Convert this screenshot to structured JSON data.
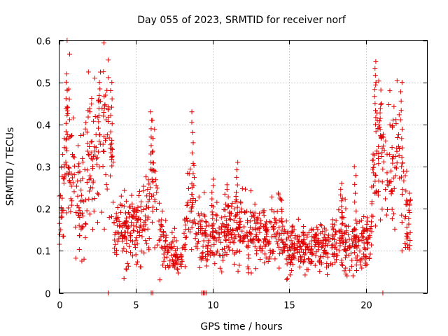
{
  "chart_data": {
    "type": "scatter",
    "title": "Day 055 of 2023, SRMTID for receiver norf",
    "xlabel": "GPS time / hours",
    "ylabel": "SRMTID / TECUs",
    "xlim": [
      0,
      24
    ],
    "ylim": [
      0,
      0.6
    ],
    "x_ticks": [
      0,
      5,
      10,
      15,
      20
    ],
    "x_tick_labels": [
      "0",
      "5",
      "10",
      "15",
      "20"
    ],
    "y_ticks": [
      0,
      0.1,
      0.2,
      0.3,
      0.4,
      0.5,
      0.6
    ],
    "y_tick_labels": [
      "0",
      "0.1",
      "0.2",
      "0.3",
      "0.4",
      "0.5",
      "0.6"
    ],
    "grid": true,
    "marker": "+",
    "point_color": "#e00000",
    "grid_color": "#a0a0a0",
    "trend": [
      [
        0.0,
        0.17
      ],
      [
        0.3,
        0.24
      ],
      [
        0.55,
        0.37
      ],
      [
        0.9,
        0.3
      ],
      [
        1.3,
        0.21
      ],
      [
        1.8,
        0.3
      ],
      [
        2.3,
        0.3
      ],
      [
        2.7,
        0.38
      ],
      [
        3.0,
        0.39
      ],
      [
        3.3,
        0.4
      ],
      [
        3.6,
        0.17
      ],
      [
        4.2,
        0.14
      ],
      [
        4.8,
        0.15
      ],
      [
        5.4,
        0.17
      ],
      [
        5.8,
        0.17
      ],
      [
        6.1,
        0.29
      ],
      [
        6.4,
        0.16
      ],
      [
        6.8,
        0.12
      ],
      [
        7.3,
        0.1
      ],
      [
        7.8,
        0.08
      ],
      [
        8.0,
        0.08
      ],
      [
        8.3,
        0.19
      ],
      [
        8.6,
        0.23
      ],
      [
        9.0,
        0.15
      ],
      [
        9.5,
        0.14
      ],
      [
        10.0,
        0.13
      ],
      [
        10.5,
        0.13
      ],
      [
        11.0,
        0.16
      ],
      [
        11.5,
        0.15
      ],
      [
        12.0,
        0.15
      ],
      [
        12.5,
        0.14
      ],
      [
        13.0,
        0.13
      ],
      [
        13.5,
        0.15
      ],
      [
        14.0,
        0.14
      ],
      [
        14.5,
        0.15
      ],
      [
        15.0,
        0.11
      ],
      [
        15.5,
        0.1
      ],
      [
        16.0,
        0.1
      ],
      [
        16.5,
        0.11
      ],
      [
        17.0,
        0.11
      ],
      [
        17.5,
        0.1
      ],
      [
        18.0,
        0.12
      ],
      [
        18.5,
        0.14
      ],
      [
        19.0,
        0.11
      ],
      [
        19.5,
        0.11
      ],
      [
        20.0,
        0.11
      ],
      [
        20.3,
        0.13
      ],
      [
        20.6,
        0.4
      ],
      [
        21.0,
        0.32
      ],
      [
        21.4,
        0.27
      ],
      [
        21.8,
        0.3
      ],
      [
        22.2,
        0.35
      ],
      [
        22.5,
        0.2
      ],
      [
        22.8,
        0.16
      ]
    ],
    "spikes": [
      {
        "x": 0.5,
        "y": 0.52
      },
      {
        "x": 2.6,
        "y": 0.5
      },
      {
        "x": 3.4,
        "y": 0.5
      },
      {
        "x": 6.0,
        "y": 0.43
      },
      {
        "x": 8.7,
        "y": 0.43
      },
      {
        "x": 10.0,
        "y": 0.27
      },
      {
        "x": 11.6,
        "y": 0.31
      },
      {
        "x": 18.4,
        "y": 0.26
      },
      {
        "x": 19.3,
        "y": 0.3
      },
      {
        "x": 20.6,
        "y": 0.55
      },
      {
        "x": 22.3,
        "y": 0.5
      }
    ],
    "zero_points": [
      3.2,
      6.0,
      6.1,
      9.3,
      9.4,
      9.5,
      9.6,
      21.1
    ],
    "x_range_data": [
      0.0,
      22.9
    ]
  }
}
